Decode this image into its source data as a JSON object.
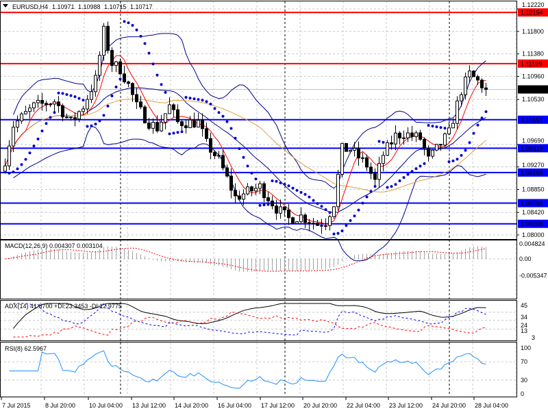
{
  "header": {
    "symbol": "EURUSD,H4",
    "open": "1.10971",
    "high": "1.10988",
    "low": "1.10715",
    "close": "1.10717"
  },
  "indicators": {
    "macd": "MACD(12,26,9) 0.004307 0.003104",
    "adx": "ADX(14) 41.8700 +DI:23.3453 -DI:12.9775",
    "rsi": "RSI(8) 62.5967"
  },
  "price_axis": [
    "1.12220",
    "1.11800",
    "1.11380",
    "1.10960",
    "1.10530",
    "1.09690",
    "1.09270",
    "1.08850",
    "1.08420",
    "1.08000"
  ],
  "levels": [
    {
      "price": 1.12154,
      "label": "1.12154",
      "color": "#ff0000"
    },
    {
      "price": 1.11199,
      "label": "1.11199",
      "color": "#ff0000"
    },
    {
      "price": 1.10151,
      "label": "1.10151",
      "color": "#0000ff"
    },
    {
      "price": 1.09619,
      "label": "1.09619",
      "color": "#0000ff"
    },
    {
      "price": 1.09165,
      "label": "1.09165",
      "color": "#0000ff"
    },
    {
      "price": 1.08594,
      "label": "1.08594",
      "color": "#0000ff"
    },
    {
      "price": 1.08208,
      "label": "1.08208",
      "color": "#0000ff"
    }
  ],
  "current_price": {
    "price": 1.10717,
    "label": "1.10717"
  },
  "macd_axis": [
    "0.004824",
    "0.00",
    "-0.005347"
  ],
  "adx_axis": [
    "45",
    "34",
    "24",
    "13",
    "3"
  ],
  "rsi_axis": [
    "100",
    "70",
    "30",
    "0"
  ],
  "time_axis": [
    "7 Jul 2015",
    "8 Jul 20:00",
    "10 Jul 04:00",
    "13 Jul 12:00",
    "14 Jul 20:00",
    "16 Jul 04:00",
    "17 Jul 12:00",
    "20 Jul 20:00",
    "22 Jul 04:00",
    "23 Jul 12:00",
    "24 Jul 20:00",
    "28 Jul 04:00"
  ],
  "chart_data": {
    "type": "candlestick",
    "title": "EURUSD,H4",
    "bar_count": 118,
    "ylim": [
      1.08,
      1.1222
    ],
    "close_path_bar_index_price": [
      [
        0,
        1.094
      ],
      [
        2,
        1.1005
      ],
      [
        7,
        1.104
      ],
      [
        12,
        1.105
      ],
      [
        16,
        1.101
      ],
      [
        19,
        1.104
      ],
      [
        22,
        1.109
      ],
      [
        24,
        1.118
      ],
      [
        26,
        1.112
      ],
      [
        28,
        1.111
      ],
      [
        30,
        1.108
      ],
      [
        32,
        1.104
      ],
      [
        35,
        1.101
      ],
      [
        37,
        1.1
      ],
      [
        40,
        1.104
      ],
      [
        42,
        1.101
      ],
      [
        45,
        1.101
      ],
      [
        47,
        1.101
      ],
      [
        49,
        1.097
      ],
      [
        52,
        1.094
      ],
      [
        56,
        1.087
      ],
      [
        59,
        1.088
      ],
      [
        62,
        1.089
      ],
      [
        66,
        1.085
      ],
      [
        69,
        1.083
      ],
      [
        72,
        1.0835
      ],
      [
        76,
        1.082
      ],
      [
        78,
        1.0825
      ],
      [
        80,
        1.086
      ],
      [
        82,
        1.096
      ],
      [
        84,
        1.096
      ],
      [
        88,
        1.093
      ],
      [
        90,
        1.09
      ],
      [
        92,
        1.095
      ],
      [
        95,
        1.0985
      ],
      [
        97,
        1.099
      ],
      [
        101,
        1.098
      ],
      [
        103,
        1.094
      ],
      [
        106,
        1.097
      ],
      [
        108,
        1.099
      ],
      [
        111,
        1.107
      ],
      [
        113,
        1.11
      ],
      [
        116,
        1.108
      ],
      [
        117,
        1.10717
      ]
    ],
    "overlays": [
      "SMA fast (red)",
      "SMA slow (orange)",
      "Bollinger Bands (blue)",
      "Parabolic SAR (blue dots)"
    ],
    "day_separators_bar_index": [
      28,
      68,
      108
    ]
  }
}
